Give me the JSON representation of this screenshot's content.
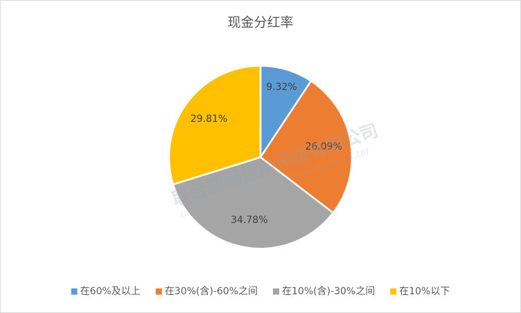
{
  "chart_data": {
    "type": "pie",
    "title": "现金分红率",
    "categories": [
      "在60%及以上",
      "在30%(含)-60%之间",
      "在10%(含)-30%之间",
      "在10%以下"
    ],
    "values": [
      9.32,
      26.09,
      34.78,
      29.81
    ],
    "value_labels": [
      "9.32%",
      "26.09%",
      "34.78%",
      "29.81%"
    ],
    "colors": [
      "#5b9bd5",
      "#ed7d31",
      "#a5a5a5",
      "#ffc000"
    ],
    "legend": "bottom",
    "watermark": [
      "联合国际信用评级有限公司",
      "United Continent International Credit Rating Co.,Ltd"
    ]
  }
}
